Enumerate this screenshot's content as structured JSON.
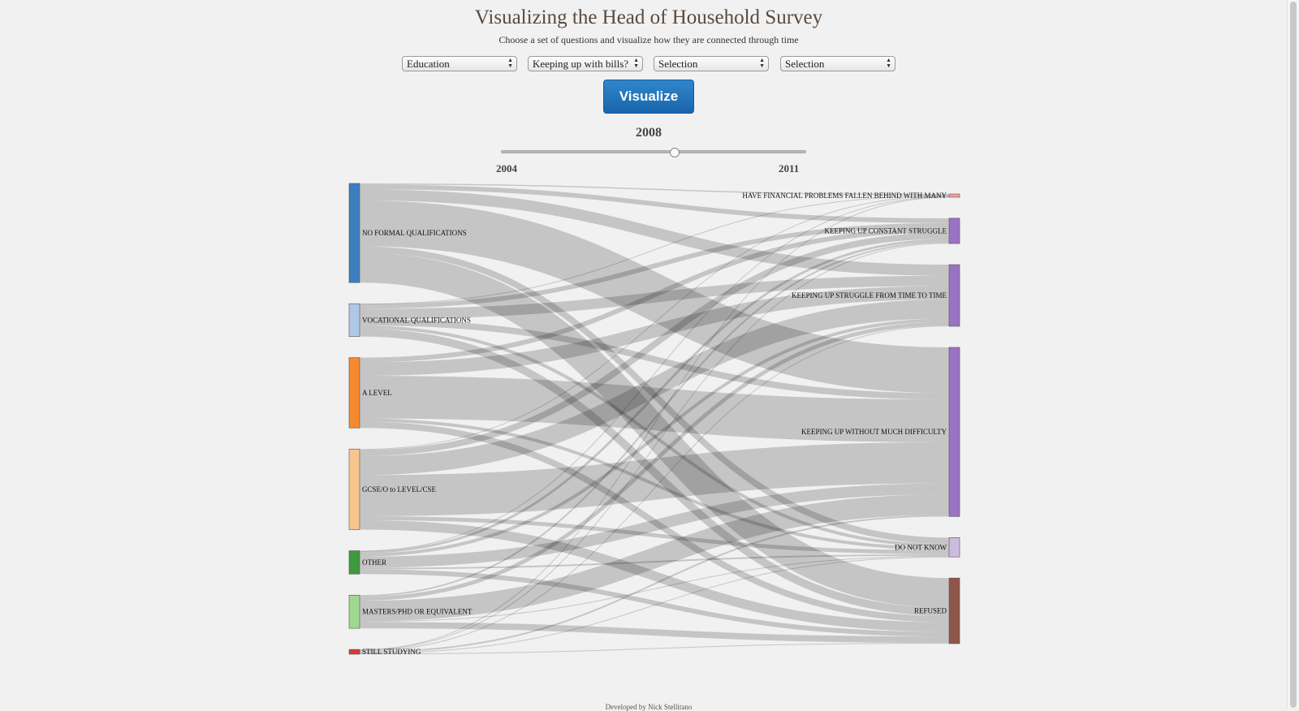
{
  "page": {
    "title": "Visualizing the Head of Household Survey",
    "subtitle": "Choose a set of questions and visualize how they are connected through time",
    "footer": "Developed by Nick Stellitano"
  },
  "controls": {
    "selects": [
      "Education",
      "Keeping up with bills?",
      "Selection",
      "Selection"
    ],
    "visualize_label": "Visualize",
    "current_year": "2008",
    "start_year": "2004",
    "end_year": "2011",
    "slider_value": 0.57
  },
  "chart_data": {
    "type": "sankey",
    "left_nodes": [
      {
        "label": "NO FORMAL QUALIFICATIONS",
        "color": "#3b7ec0"
      },
      {
        "label": "VOCATIONAL QUALIFICATIONS",
        "color": "#b0c8e8"
      },
      {
        "label": "A LEVEL",
        "color": "#f58a2f"
      },
      {
        "label": "GCSE/O to LEVEL/CSE",
        "color": "#f9c58d"
      },
      {
        "label": "OTHER",
        "color": "#3d9a3f"
      },
      {
        "label": "MASTERS/PHD OR EQUIVALENT",
        "color": "#9fd98f"
      },
      {
        "label": "STILL STUDYING",
        "color": "#d23a3a"
      }
    ],
    "right_nodes": [
      {
        "label": "HAVE FINANCIAL PROBLEMS FALLEN BEHIND WITH MANY",
        "color": "#f0a1a1"
      },
      {
        "label": "KEEPING UP CONSTANT STRUGGLE",
        "color": "#9c72c4"
      },
      {
        "label": "KEEPING UP STRUGGLE FROM TIME TO TIME",
        "color": "#9c72c4"
      },
      {
        "label": "KEEPING UP WITHOUT MUCH DIFFICULTY",
        "color": "#9c72c4"
      },
      {
        "label": "DO NOT KNOW",
        "color": "#cbbcdf"
      },
      {
        "label": "REFUSED",
        "color": "#8e5548"
      }
    ],
    "links": [
      [
        0,
        0,
        1.5
      ],
      [
        0,
        1,
        6
      ],
      [
        0,
        2,
        14
      ],
      [
        0,
        3,
        58
      ],
      [
        0,
        4,
        8
      ],
      [
        0,
        5,
        38
      ],
      [
        1,
        0,
        0.5
      ],
      [
        1,
        1,
        6
      ],
      [
        1,
        2,
        13
      ],
      [
        1,
        3,
        8
      ],
      [
        1,
        4,
        4
      ],
      [
        1,
        5,
        10
      ],
      [
        2,
        1,
        6
      ],
      [
        2,
        2,
        17
      ],
      [
        2,
        3,
        54
      ],
      [
        2,
        4,
        4
      ],
      [
        2,
        5,
        8
      ],
      [
        3,
        0,
        1
      ],
      [
        3,
        1,
        8
      ],
      [
        3,
        2,
        24
      ],
      [
        3,
        3,
        52
      ],
      [
        3,
        4,
        5
      ],
      [
        3,
        5,
        12
      ],
      [
        4,
        0,
        0.5
      ],
      [
        4,
        1,
        3
      ],
      [
        4,
        2,
        4
      ],
      [
        4,
        3,
        14
      ],
      [
        4,
        4,
        2
      ],
      [
        4,
        5,
        6
      ],
      [
        5,
        1,
        2
      ],
      [
        5,
        2,
        5
      ],
      [
        5,
        3,
        26
      ],
      [
        5,
        4,
        1
      ],
      [
        5,
        5,
        8
      ],
      [
        6,
        0,
        0.5
      ],
      [
        6,
        1,
        1
      ],
      [
        6,
        2,
        1
      ],
      [
        6,
        3,
        2
      ],
      [
        6,
        4,
        0.5
      ],
      [
        6,
        5,
        1
      ]
    ]
  }
}
